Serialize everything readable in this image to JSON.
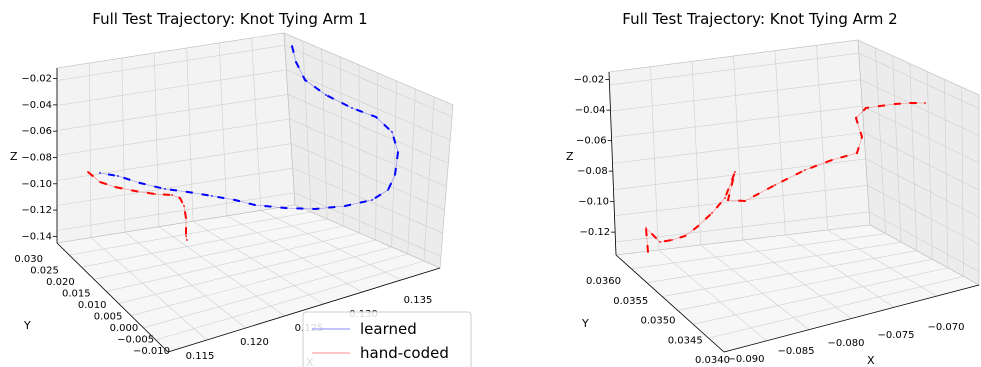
{
  "chart_data": [
    {
      "type": "line",
      "subtype": "3d-line",
      "title": "Full Test Trajectory: Knot Tying Arm 1",
      "xlabel": "X",
      "ylabel": "Y",
      "zlabel": "Z",
      "xticks": [
        "0.115",
        "0.120",
        "0.125",
        "0.130",
        "0.135"
      ],
      "yticks": [
        "−0.010",
        "−0.005",
        "0.000",
        "0.005",
        "0.010",
        "0.015",
        "0.020",
        "0.025",
        "0.030"
      ],
      "zticks": [
        "−0.14",
        "−0.12",
        "−0.10",
        "−0.08",
        "−0.06",
        "−0.04",
        "−0.02"
      ],
      "zlim": [
        -0.145,
        -0.012
      ],
      "grid": true,
      "legend": {
        "placement": "lower-right",
        "entries": [
          "learned",
          "hand-coded"
        ]
      },
      "series": [
        {
          "name": "learned",
          "color": "#0000ff",
          "z_path": [
            -0.015,
            -0.016,
            -0.02,
            -0.03,
            -0.045,
            -0.06,
            -0.075,
            -0.085,
            -0.092,
            -0.098,
            -0.103,
            -0.108,
            -0.112,
            -0.114,
            -0.116,
            -0.117,
            -0.116,
            -0.113,
            -0.109,
            -0.104,
            -0.1,
            -0.098
          ]
        },
        {
          "name": "hand-coded",
          "color": "#ff0000",
          "z_path": [
            -0.118,
            -0.112,
            -0.106,
            -0.1,
            -0.097,
            -0.098,
            -0.101,
            -0.106,
            -0.112,
            -0.12,
            -0.128,
            -0.132
          ]
        }
      ]
    },
    {
      "type": "line",
      "subtype": "3d-line",
      "title": "Full Test Trajectory: Knot Tying Arm 2",
      "xlabel": "X",
      "ylabel": "Y",
      "zlabel": "Z",
      "xticks": [
        "−0.090",
        "−0.085",
        "−0.080",
        "−0.075",
        "−0.070"
      ],
      "yticks": [
        "0.0340",
        "0.0345",
        "0.0350",
        "0.0355",
        "0.0360"
      ],
      "zticks": [
        "−0.12",
        "−0.10",
        "−0.08",
        "−0.06",
        "−0.04",
        "−0.02"
      ],
      "zlim": [
        -0.135,
        -0.015
      ],
      "grid": true,
      "series": [
        {
          "name": "hand-coded",
          "color": "#ff0000",
          "z_path": [
            -0.13,
            -0.122,
            -0.125,
            -0.118,
            -0.112,
            -0.104,
            -0.097,
            -0.09,
            -0.085,
            -0.093,
            -0.1,
            -0.095,
            -0.088,
            -0.081,
            -0.074,
            -0.066,
            -0.058,
            -0.05,
            -0.045,
            -0.043,
            -0.04,
            -0.038
          ]
        }
      ]
    }
  ]
}
